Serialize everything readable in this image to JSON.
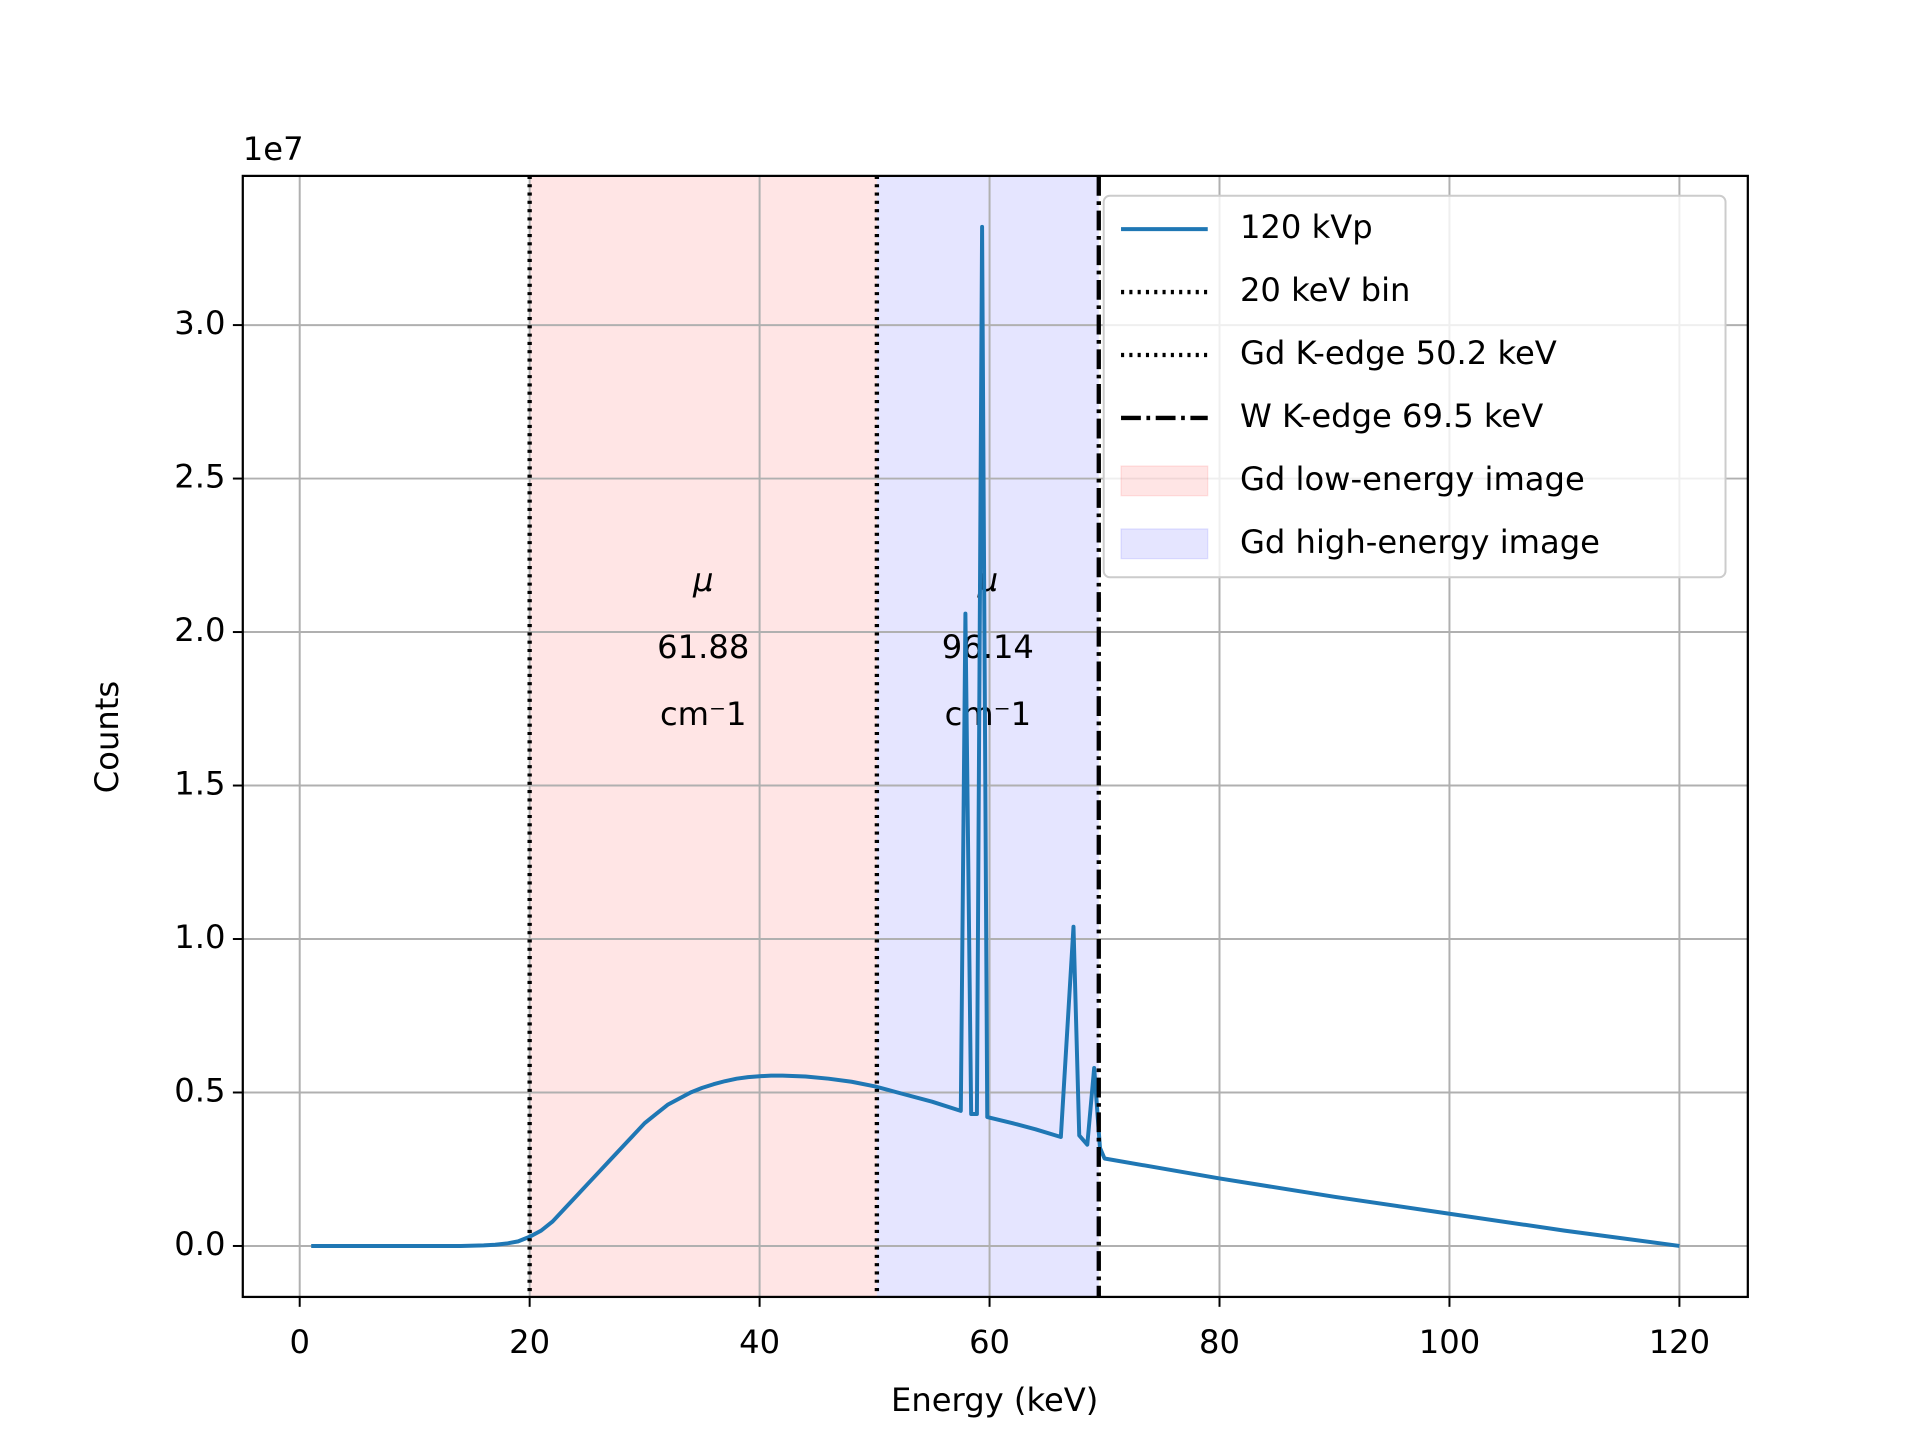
{
  "chart_data": {
    "type": "line",
    "xlabel": "Energy (keV)",
    "ylabel": "Counts",
    "y_offset_label": "1e7",
    "xlim": [
      -4.95,
      125.95
    ],
    "ylim": [
      -0.166,
      3.486
    ],
    "xticks": [
      0,
      20,
      40,
      60,
      80,
      100,
      120
    ],
    "yticks": [
      {
        "value": 0,
        "label": "0.0"
      },
      0.5,
      {
        "value": 1,
        "label": "1.0"
      },
      1.5,
      {
        "value": 2,
        "label": "2.0"
      },
      2.5,
      {
        "value": 3,
        "label": "3.0"
      }
    ],
    "grid": true,
    "legend": "upper right",
    "series": [
      {
        "name": "120 kVp",
        "color": "#1f77b4",
        "x": [
          1,
          5,
          10,
          14,
          16,
          17,
          18,
          19,
          20,
          21,
          22,
          23,
          24,
          25,
          26,
          27,
          28,
          29,
          30,
          31,
          32,
          33,
          34,
          35,
          36,
          37,
          38,
          39,
          40,
          41,
          42,
          44,
          46,
          48,
          50,
          52,
          55,
          57.5,
          57.9,
          58.4,
          58.9,
          59.35,
          59.8,
          62,
          64,
          66.2,
          67.3,
          67.8,
          68.5,
          69.1,
          69.6,
          70,
          80,
          90,
          100,
          110,
          120
        ],
        "values": [
          0,
          0,
          0,
          0,
          0.002,
          0.004,
          0.008,
          0.015,
          0.03,
          0.05,
          0.08,
          0.12,
          0.16,
          0.2,
          0.24,
          0.28,
          0.32,
          0.36,
          0.4,
          0.43,
          0.46,
          0.48,
          0.5,
          0.515,
          0.527,
          0.537,
          0.545,
          0.55,
          0.553,
          0.555,
          0.555,
          0.552,
          0.545,
          0.535,
          0.52,
          0.5,
          0.47,
          0.44,
          2.06,
          0.43,
          0.43,
          3.32,
          0.42,
          0.4,
          0.38,
          0.355,
          1.04,
          0.36,
          0.33,
          0.58,
          0.32,
          0.285,
          0.22,
          0.16,
          0.105,
          0.05,
          0
        ]
      }
    ],
    "vlines": [
      {
        "name": "20 keV bin",
        "value": 20,
        "style": "dotted",
        "color": "#000000"
      },
      {
        "name": "Gd K-edge 50.2 keV",
        "value": 50.2,
        "style": "dotted",
        "color": "#000000"
      },
      {
        "name": "W K-edge 69.5 keV",
        "value": 69.5,
        "style": "dashdot",
        "color": "#000000"
      }
    ],
    "spans": [
      {
        "name": "Gd low-energy image",
        "start": 20,
        "end": 50.2,
        "color": "#ff0000"
      },
      {
        "name": "Gd high-energy image",
        "start": 50.2,
        "end": 69.5,
        "color": "#0000ff"
      }
    ],
    "annotations": [
      {
        "lines": [
          "μ",
          "61.88",
          "cm⁻1"
        ],
        "color": "#ff0000"
      },
      {
        "lines": [
          "μ",
          "96.14",
          "cm⁻1"
        ],
        "color": "#0000ff"
      }
    ]
  }
}
